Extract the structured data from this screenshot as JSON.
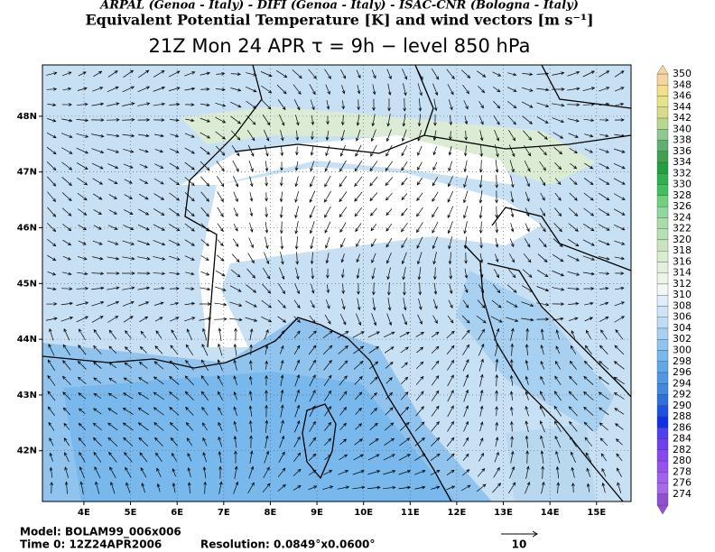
{
  "header": {
    "credits": "ARPAL (Genoa - Italy)  -  DIFI (Genoa - Italy)  -  ISAC-CNR (Bologna - Italy)",
    "title": "Equivalent Potential Temperature [K] and wind vectors [m s⁻¹]",
    "subtitle": "21Z Mon 24 APR   τ = 9h   −   level 850 hPa"
  },
  "map": {
    "xlim": [
      3.11,
      15.74
    ],
    "ylim": [
      41.09,
      48.92
    ],
    "xticks": [
      {
        "value": 4,
        "label": "4E"
      },
      {
        "value": 5,
        "label": "5E"
      },
      {
        "value": 6,
        "label": "6E"
      },
      {
        "value": 7,
        "label": "7E"
      },
      {
        "value": 8,
        "label": "8E"
      },
      {
        "value": 9,
        "label": "9E"
      },
      {
        "value": 10,
        "label": "10E"
      },
      {
        "value": 11,
        "label": "11E"
      },
      {
        "value": 12,
        "label": "12E"
      },
      {
        "value": 13,
        "label": "13E"
      },
      {
        "value": 14,
        "label": "14E"
      },
      {
        "value": 15,
        "label": "15E"
      }
    ],
    "yticks": [
      {
        "value": 42,
        "label": "42N"
      },
      {
        "value": 43,
        "label": "43N"
      },
      {
        "value": 44,
        "label": "44N"
      },
      {
        "value": 45,
        "label": "45N"
      },
      {
        "value": 46,
        "label": "46N"
      },
      {
        "value": 47,
        "label": "47N"
      },
      {
        "value": 48,
        "label": "48N"
      }
    ],
    "grid": true
  },
  "colorbar": {
    "levels": [
      350,
      348,
      346,
      344,
      342,
      340,
      338,
      336,
      334,
      332,
      330,
      328,
      326,
      324,
      322,
      320,
      318,
      316,
      314,
      312,
      310,
      308,
      306,
      304,
      302,
      300,
      298,
      296,
      294,
      292,
      290,
      288,
      286,
      284,
      282,
      280,
      278,
      276,
      274
    ],
    "colors": [
      "#f5d5a0",
      "#f3e08a",
      "#e6e48a",
      "#d8dc8a",
      "#b8d890",
      "#8fc890",
      "#60b070",
      "#40a050",
      "#20a040",
      "#30b050",
      "#40c060",
      "#70d080",
      "#90d8a0",
      "#a8dca8",
      "#b8e0b8",
      "#c8e4c0",
      "#d8ecd0",
      "#e4f0dc",
      "#eef4e8",
      "#f4f8f4",
      "#e0ecf8",
      "#d0e4f8",
      "#c0dcf4",
      "#a8d0f0",
      "#90c4ee",
      "#78b8ec",
      "#60a8e8",
      "#5098e4",
      "#4088e0",
      "#3070dc",
      "#2050e0",
      "#1030e8",
      "#5040f0",
      "#7040f0",
      "#8848f0",
      "#9850f0",
      "#a060f0",
      "#a868e8",
      "#9050d0"
    ]
  },
  "footer": {
    "model": "Model: BOLAM99_006x006",
    "time": "Time 0: 12Z24APR2006",
    "resolution": "Resolution: 0.0849°x0.0600°",
    "reference_vector": 10
  }
}
